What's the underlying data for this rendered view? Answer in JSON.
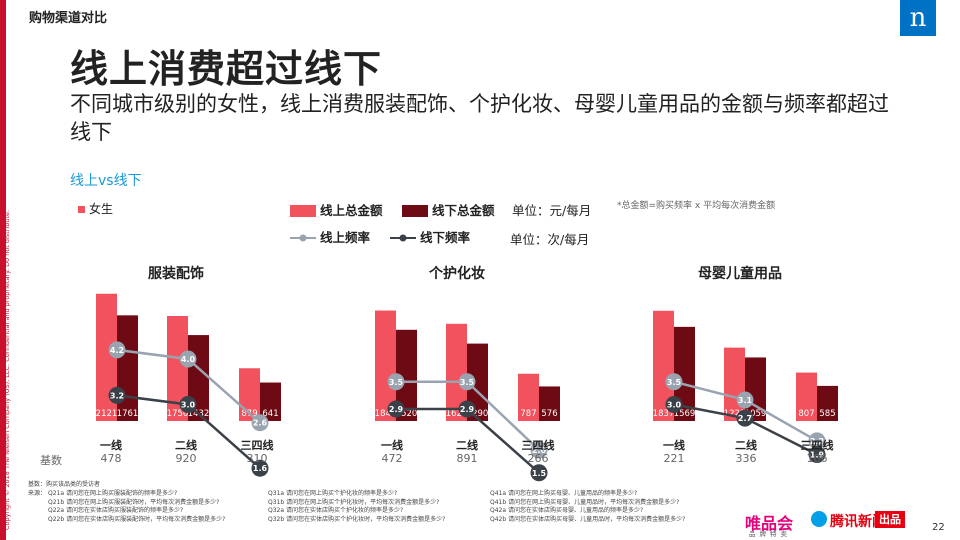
{
  "breadcrumb": "购物渠道对比",
  "logo_letter": "n",
  "title": "线上消费超过线下",
  "subtitle": "不同城市级别的女性，线上消费服装配饰、个护化妆、母婴儿童用品的金额与频率都超过线下",
  "section_label": "线上vs线下",
  "female_label": "女生",
  "legend": {
    "online_amount": "线上总金额",
    "offline_amount": "线下总金额",
    "online_freq": "线上频率",
    "offline_freq": "线下频率",
    "unit_amount": "单位：元/每月",
    "unit_freq": "单位：次/每月",
    "note": "*总金额=购买频率 x 平均每次消费金额"
  },
  "colors": {
    "online_bar": "#f2515e",
    "offline_bar": "#6e0a14",
    "online_line": "#9aa4b0",
    "offline_line": "#3b4149"
  },
  "sidebar_text": "Copyright © 2018 The Nielsen Company (US), LLC. Confidential and proprietary. Do not distribute.",
  "base_label": "基数",
  "chart_data": [
    {
      "type": "bar",
      "title": "服装配饰",
      "categories": [
        "一线",
        "二线",
        "三四线"
      ],
      "series": [
        {
          "name": "线上总金额",
          "values": [
            2121,
            1750,
            879
          ]
        },
        {
          "name": "线下总金额",
          "values": [
            1761,
            1432,
            641
          ]
        }
      ],
      "lines": [
        {
          "name": "线上频率",
          "values": [
            4.2,
            4.0,
            2.6
          ]
        },
        {
          "name": "线下频率",
          "values": [
            3.2,
            3.0,
            1.6
          ]
        }
      ],
      "bases": [
        "478",
        "920",
        "310"
      ]
    },
    {
      "type": "bar",
      "title": "个护化妆",
      "categories": [
        "一线",
        "二线",
        "三四线"
      ],
      "series": [
        {
          "name": "线上总金额",
          "values": [
            1841,
            1620,
            787
          ]
        },
        {
          "name": "线下总金额",
          "values": [
            1520,
            1290,
            576
          ]
        }
      ],
      "lines": [
        {
          "name": "线上频率",
          "values": [
            3.5,
            3.5,
            2.0
          ]
        },
        {
          "name": "线下频率",
          "values": [
            2.9,
            2.9,
            1.5
          ]
        }
      ],
      "bases": [
        "472",
        "891",
        "266"
      ]
    },
    {
      "type": "bar",
      "title": "母婴儿童用品",
      "categories": [
        "一线",
        "二线",
        "三四线"
      ],
      "series": [
        {
          "name": "线上总金额",
          "values": [
            1837,
            1223,
            807
          ]
        },
        {
          "name": "线下总金额",
          "values": [
            1569,
            1059,
            585
          ]
        }
      ],
      "lines": [
        {
          "name": "线上频率",
          "values": [
            3.5,
            3.1,
            2.2
          ]
        },
        {
          "name": "线下频率",
          "values": [
            3.0,
            2.7,
            1.9
          ]
        }
      ],
      "bases": [
        "221",
        "336",
        "106"
      ]
    }
  ],
  "sources": {
    "base_note": "基数：购买该品类的受访者",
    "src_label": "来源：",
    "col1": [
      "Q21a 请问您在网上购买服装配饰的频率是多少?",
      "Q21b 请问您在网上购买服装配饰时，平均每次消费金额是多少?",
      "Q22a 请问您在实体店购买服装配饰的频率是多少?",
      "Q22b 请问您在实体店购买服装配饰时，平均每次消费金额是多少?"
    ],
    "col2": [
      "Q31a 请问您在网上购买个护化妆的频率是多少?",
      "Q31b 请问您在网上购买个护化妆时，平均每次消费金额是多少?",
      "Q32a 请问您在实体店购买个护化妆的频率是多少?",
      "Q32b 请问您在实体店购买个护化妆时，平均每次消费金额是多少?"
    ],
    "col3": [
      "Q41a 请问您在网上购买母婴、儿童用品的频率是多少?",
      "Q41b 请问您在网上购买母婴、儿童用品时，平均每次消费金额是多少?",
      "Q42a 请问您在实体店购买母婴、儿童用品的频率是多少?",
      "Q42b 请问您在实体店购买母婴、儿童用品时，平均每次消费金额是多少?"
    ]
  },
  "brands": {
    "vip": "唯品会",
    "vip_sub": "品牌特卖",
    "tencent": "腾讯新闻",
    "tencent_tag": "出品"
  },
  "page_number": "22"
}
